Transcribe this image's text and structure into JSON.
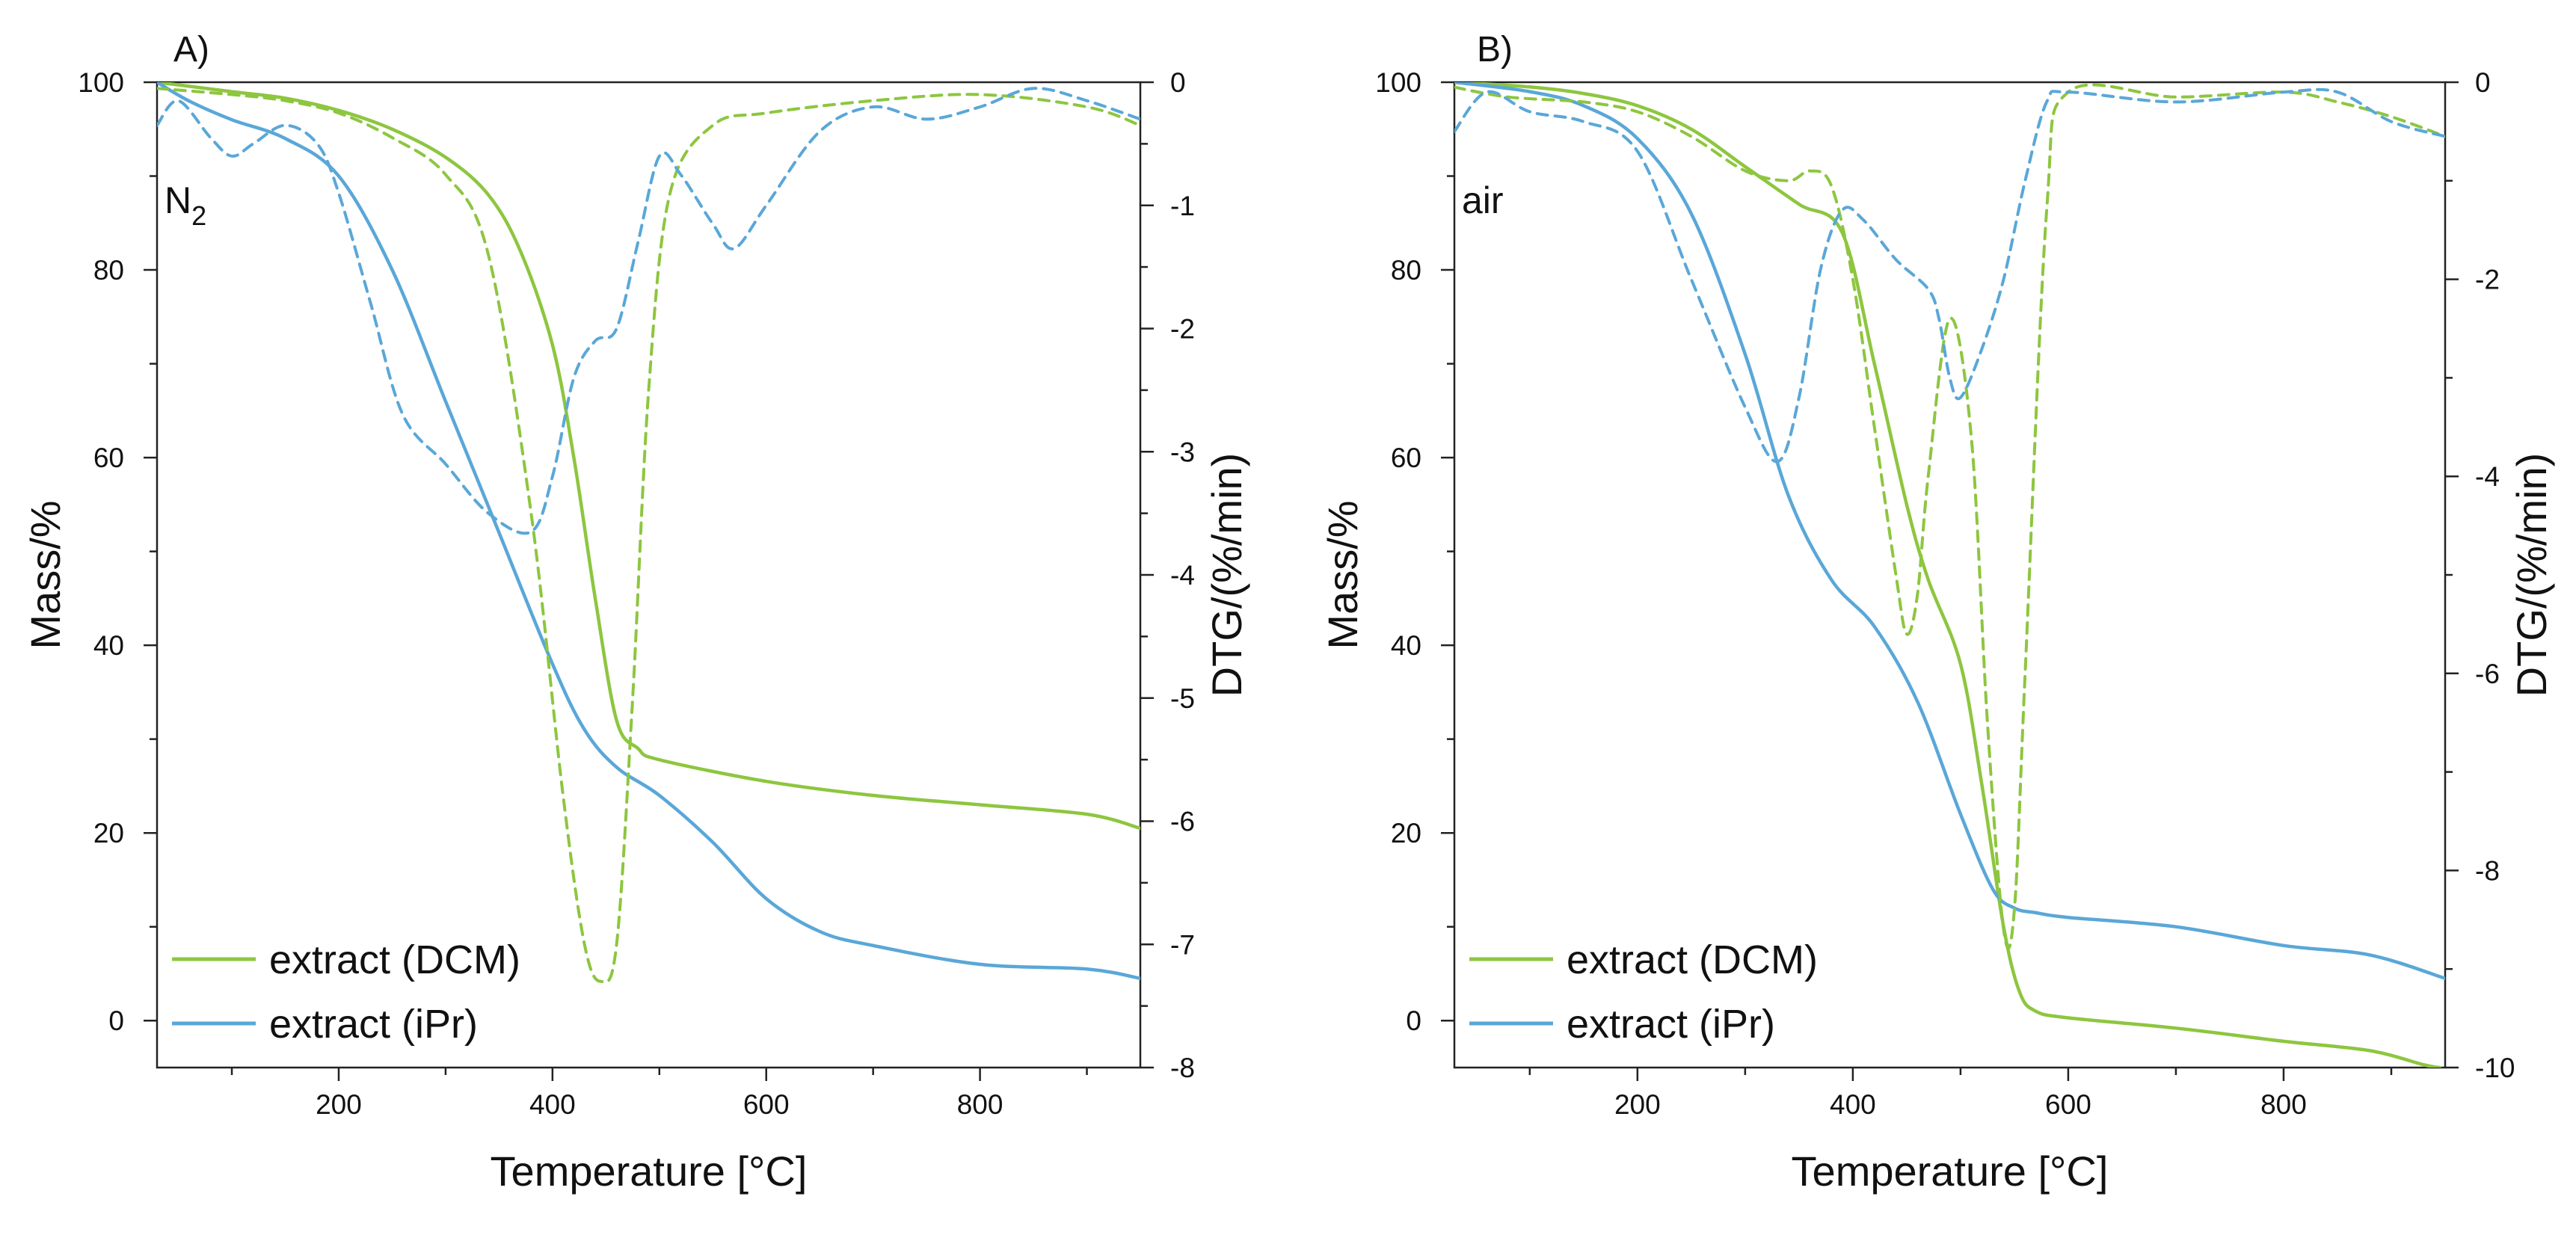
{
  "chart_data": [
    {
      "type": "line",
      "panel_label": "A)",
      "atmosphere_label": "N",
      "atmosphere_subscript": "2",
      "xlabel": "Temperature [°C]",
      "ylabel": "Mass/%",
      "y2label": "DTG/(%/min)",
      "xlim": [
        30,
        950
      ],
      "ylim": [
        -5,
        100
      ],
      "y2lim": [
        -8,
        0
      ],
      "x_ticks": [
        200,
        400,
        600,
        800
      ],
      "y_ticks": [
        0,
        20,
        40,
        60,
        80,
        100
      ],
      "y2_ticks": [
        0,
        -1,
        -2,
        -3,
        -4,
        -5,
        -6,
        -7,
        -8
      ],
      "legend_position": "bottom-left",
      "series": [
        {
          "name": "extract (DCM)",
          "color": "#8dc63f",
          "style": "solid",
          "axis": "left",
          "x": [
            30,
            100,
            150,
            200,
            250,
            300,
            340,
            370,
            400,
            420,
            440,
            460,
            480,
            500,
            600,
            700,
            800,
            900,
            950
          ],
          "y": [
            100,
            99,
            98.3,
            97,
            95,
            92,
            88,
            82,
            72,
            60,
            45,
            32,
            29,
            27.8,
            25.5,
            24,
            23,
            22,
            20.5
          ]
        },
        {
          "name": "extract (iPr)",
          "color": "#5aa7d8",
          "style": "solid",
          "axis": "left",
          "x": [
            30,
            60,
            100,
            150,
            200,
            250,
            300,
            350,
            400,
            430,
            460,
            500,
            550,
            600,
            650,
            700,
            800,
            900,
            950
          ],
          "y": [
            100,
            98,
            96,
            94,
            90,
            80,
            66,
            52,
            38,
            31,
            27,
            24,
            19,
            13,
            9.5,
            8,
            6,
            5.5,
            4.5
          ]
        },
        {
          "name": "DTG extract (DCM)",
          "color": "#8dc63f",
          "style": "dashed",
          "axis": "right",
          "x": [
            30,
            100,
            150,
            200,
            250,
            300,
            340,
            380,
            410,
            430,
            445,
            460,
            475,
            490,
            510,
            550,
            600,
            700,
            800,
            900,
            950
          ],
          "y": [
            -0.05,
            -0.1,
            -0.15,
            -0.25,
            -0.45,
            -0.75,
            -1.4,
            -3.5,
            -5.8,
            -7.0,
            -7.3,
            -7.0,
            -5.0,
            -2.5,
            -0.9,
            -0.35,
            -0.25,
            -0.15,
            -0.1,
            -0.2,
            -0.35
          ]
        },
        {
          "name": "DTG extract (iPr)",
          "color": "#5aa7d8",
          "style": "dashed",
          "axis": "right",
          "x": [
            30,
            50,
            80,
            100,
            120,
            150,
            180,
            200,
            230,
            260,
            300,
            340,
            380,
            400,
            420,
            440,
            460,
            480,
            500,
            520,
            550,
            570,
            600,
            650,
            700,
            750,
            800,
            850,
            900,
            950
          ],
          "y": [
            -0.35,
            -0.15,
            -0.45,
            -0.6,
            -0.5,
            -0.35,
            -0.5,
            -0.9,
            -1.8,
            -2.7,
            -3.1,
            -3.5,
            -3.65,
            -3.2,
            -2.4,
            -2.1,
            -2.0,
            -1.3,
            -0.6,
            -0.75,
            -1.15,
            -1.35,
            -1.0,
            -0.4,
            -0.2,
            -0.3,
            -0.2,
            -0.05,
            -0.15,
            -0.3
          ]
        }
      ]
    },
    {
      "type": "line",
      "panel_label": "B)",
      "atmosphere_label": "air",
      "atmosphere_subscript": "",
      "xlabel": "Temperature [°C]",
      "ylabel": "Mass/%",
      "y2label": "DTG/(%/min)",
      "xlim": [
        30,
        950
      ],
      "ylim": [
        -5,
        100
      ],
      "y2lim": [
        -10,
        0
      ],
      "x_ticks": [
        200,
        400,
        600,
        800
      ],
      "y_ticks": [
        0,
        20,
        40,
        60,
        80,
        100
      ],
      "y2_ticks": [
        0,
        -2,
        -4,
        -6,
        -8,
        -10
      ],
      "legend_position": "bottom-left",
      "series": [
        {
          "name": "extract (DCM)",
          "color": "#8dc63f",
          "style": "solid",
          "axis": "left",
          "x": [
            30,
            100,
            150,
            200,
            250,
            300,
            350,
            390,
            420,
            450,
            470,
            500,
            520,
            540,
            555,
            570,
            600,
            700,
            800,
            880,
            930,
            945
          ],
          "y": [
            100,
            99.5,
            98.8,
            97.5,
            95,
            91,
            87,
            84,
            70,
            55,
            47,
            38,
            25,
            10,
            3,
            1,
            0.3,
            -0.8,
            -2.2,
            -3.2,
            -4.7,
            -5
          ]
        },
        {
          "name": "extract (iPr)",
          "color": "#5aa7d8",
          "style": "solid",
          "axis": "left",
          "x": [
            30,
            100,
            150,
            200,
            250,
            300,
            340,
            380,
            420,
            460,
            500,
            530,
            550,
            570,
            600,
            700,
            800,
            880,
            950
          ],
          "y": [
            100,
            99,
            97.5,
            94,
            86,
            71,
            56,
            47,
            42,
            34,
            22,
            14,
            12,
            11.5,
            11,
            10,
            8,
            7,
            4.5
          ]
        },
        {
          "name": "DTG extract (DCM)",
          "color": "#8dc63f",
          "style": "dashed",
          "axis": "right",
          "x": [
            30,
            80,
            150,
            200,
            250,
            300,
            340,
            360,
            380,
            400,
            420,
            440,
            450,
            460,
            470,
            490,
            510,
            525,
            540,
            550,
            560,
            580,
            600,
            700,
            800,
            850,
            900,
            950
          ],
          "y": [
            -0.05,
            -0.15,
            -0.2,
            -0.3,
            -0.55,
            -0.9,
            -1.0,
            -0.9,
            -1.05,
            -2.0,
            -3.5,
            -5.0,
            -5.6,
            -5.2,
            -4.0,
            -2.4,
            -3.6,
            -6.5,
            -8.6,
            -8.4,
            -6.0,
            -1.3,
            -0.1,
            -0.15,
            -0.1,
            -0.2,
            -0.35,
            -0.55
          ]
        },
        {
          "name": "DTG extract (iPr)",
          "color": "#5aa7d8",
          "style": "dashed",
          "axis": "right",
          "x": [
            30,
            60,
            100,
            150,
            200,
            250,
            300,
            330,
            350,
            370,
            390,
            410,
            440,
            470,
            480,
            490,
            500,
            520,
            540,
            560,
            580,
            600,
            700,
            800,
            850,
            900,
            950
          ],
          "y": [
            -0.5,
            -0.1,
            -0.3,
            -0.4,
            -0.7,
            -2.0,
            -3.3,
            -3.85,
            -3.2,
            -1.9,
            -1.3,
            -1.4,
            -1.8,
            -2.1,
            -2.4,
            -3.0,
            -3.2,
            -2.7,
            -2.0,
            -1.0,
            -0.2,
            -0.1,
            -0.2,
            -0.1,
            -0.1,
            -0.4,
            -0.55
          ]
        }
      ]
    }
  ]
}
